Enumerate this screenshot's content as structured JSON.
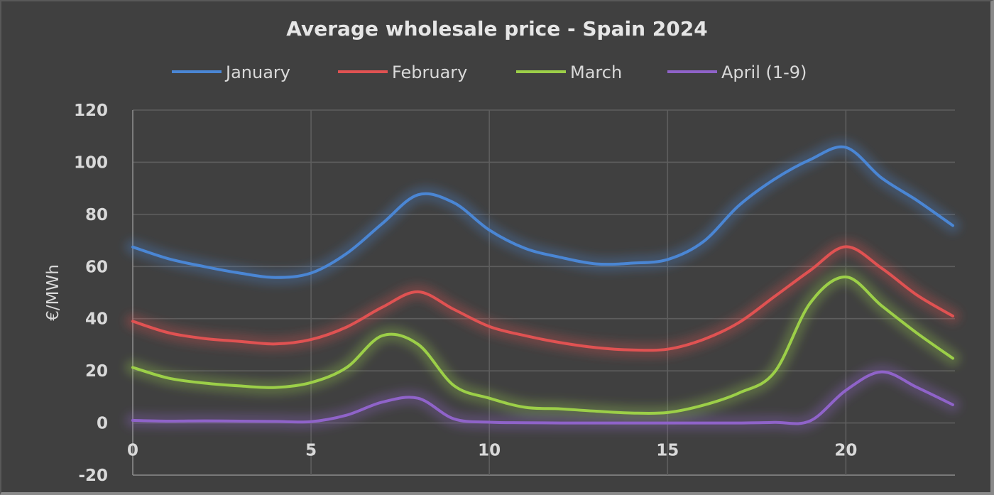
{
  "chart_data": {
    "type": "line",
    "title": "Average wholesale price - Spain 2024",
    "xlabel": "",
    "ylabel": "€/MWh",
    "xlim": [
      0,
      23
    ],
    "ylim": [
      -20,
      120
    ],
    "x_ticks": [
      0,
      5,
      10,
      15,
      20
    ],
    "y_ticks": [
      -20,
      0,
      20,
      40,
      60,
      80,
      100,
      120
    ],
    "x_tick_labels": [
      "0",
      "5",
      "10",
      "15",
      "20"
    ],
    "y_tick_labels": [
      "-20",
      "0",
      "20",
      "40",
      "60",
      "80",
      "100",
      "120"
    ],
    "grid": true,
    "legend_position": "top",
    "x": [
      0,
      1,
      2,
      3,
      4,
      5,
      6,
      7,
      8,
      9,
      10,
      11,
      12,
      13,
      14,
      15,
      16,
      17,
      18,
      19,
      20,
      21,
      22,
      23
    ],
    "series": [
      {
        "name": "January",
        "color": "#4a86d4",
        "values": [
          67.5,
          63,
          60,
          57.5,
          55.8,
          57.5,
          65,
          76.5,
          87.5,
          84.5,
          74,
          67,
          63.5,
          61,
          61.3,
          62.7,
          69.5,
          83.4,
          93.5,
          101,
          105.7,
          94,
          85.3,
          75.7
        ]
      },
      {
        "name": "February",
        "color": "#e05252",
        "values": [
          39,
          34.6,
          32.4,
          31.3,
          30.3,
          32,
          36.8,
          44.4,
          50.3,
          43.6,
          37,
          33.5,
          30.8,
          28.9,
          28,
          28.3,
          32,
          38.5,
          48.5,
          58.5,
          67.6,
          59.4,
          49,
          41
        ]
      },
      {
        "name": "March",
        "color": "#9ccf48",
        "values": [
          21.3,
          17.2,
          15.3,
          14.2,
          13.6,
          15.5,
          21.3,
          33.5,
          30.2,
          14.4,
          9.5,
          6,
          5.4,
          4.5,
          3.8,
          4,
          6.8,
          11.5,
          19.5,
          46,
          56,
          45,
          34.4,
          24.8
        ]
      },
      {
        "name": "April (1-9)",
        "color": "#8f63c9",
        "values": [
          1,
          0.7,
          0.8,
          0.7,
          0.6,
          0.5,
          3,
          8,
          9.5,
          1.6,
          0.3,
          0.1,
          0,
          0,
          0,
          0,
          0,
          0,
          0.2,
          0.8,
          12.5,
          19.6,
          13.6,
          7
        ]
      }
    ]
  }
}
